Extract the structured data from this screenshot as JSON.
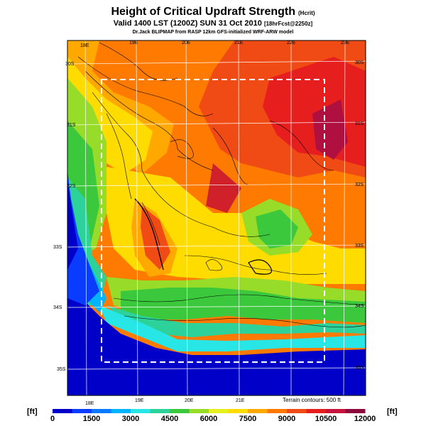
{
  "header": {
    "title": "Height of Critical Updraft Strength",
    "title_units": "(Hcrit)",
    "valid_line": "Valid 1400 LST (1200Z) SUN 31 Oct 2010",
    "valid_suffix": "[18hrFcst@2250z]",
    "credit": "Dr.Jack BLIPMAP from RASP 12km GFS-initialized WRF-ARW model"
  },
  "map": {
    "lon_labels_top": [
      "18E",
      "19E",
      "20E",
      "21E",
      "22E",
      "23E"
    ],
    "lon_labels_bottom": [
      "18E",
      "19E",
      "20E",
      "21E"
    ],
    "lat_labels_right": [
      "30S",
      "31S",
      "32S",
      "33S",
      "34S",
      "35S"
    ],
    "lat_labels_left": [
      "30S",
      "31S",
      "32S",
      "33S",
      "34S",
      "35S"
    ],
    "terrain_note": "Terrain contours: 500 ft"
  },
  "colorbar": {
    "unit_left": "[ft]",
    "unit_right": "[ft]",
    "ticks": [
      "0",
      "1500",
      "3000",
      "4500",
      "6000",
      "7500",
      "9000",
      "10500",
      "12000"
    ],
    "colors": [
      "#0000c8",
      "#0a3cff",
      "#0a78ff",
      "#00b4ff",
      "#28e6e6",
      "#2cd29a",
      "#3cc83c",
      "#96dc28",
      "#e6f01e",
      "#ffdc00",
      "#ffa800",
      "#ff7800",
      "#f04b14",
      "#e61e1e",
      "#c8143c",
      "#8c0a3c"
    ]
  }
}
